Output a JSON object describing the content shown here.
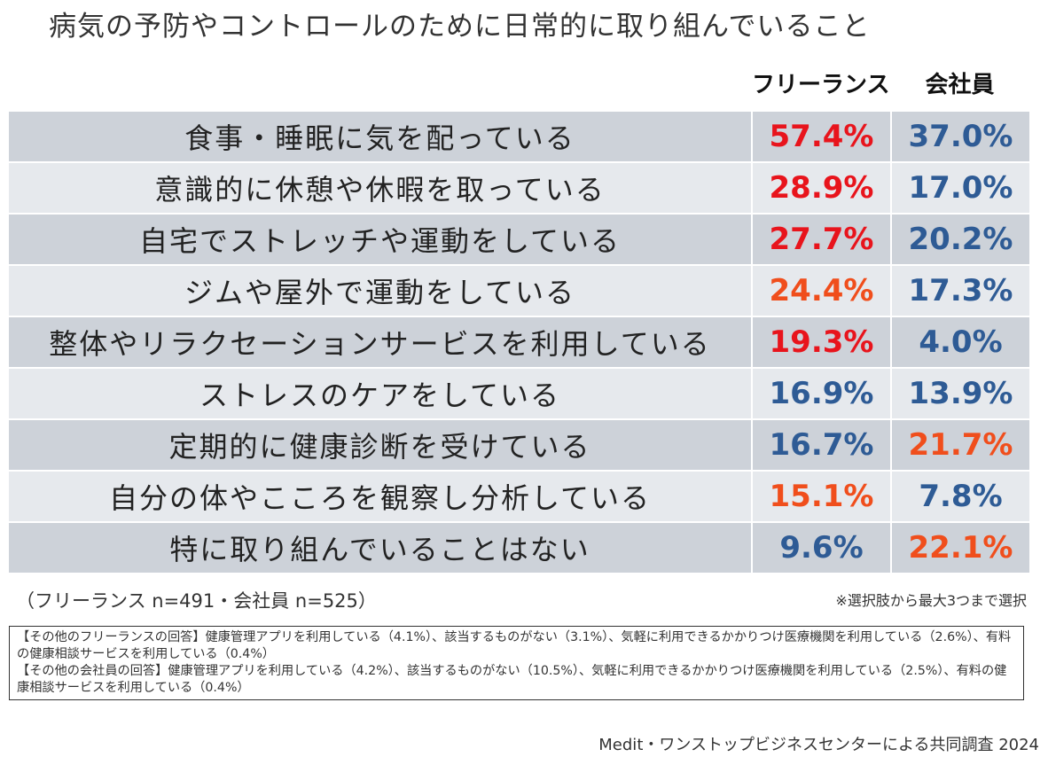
{
  "title": "病気の予防やコントロールのために日常的に取り組んでいること",
  "chart_data": {
    "type": "table",
    "title": "病気の予防やコントロールのために日常的に取り組んでいること",
    "columns": [
      "フリーランス",
      "会社員"
    ],
    "rows": [
      {
        "label": "食事・睡眠に気を配っている",
        "values": [
          "57.4%",
          "37.0%"
        ],
        "colors": [
          "#e8141c",
          "#2e5b95"
        ]
      },
      {
        "label": "意識的に休憩や休暇を取っている",
        "values": [
          "28.9%",
          "17.0%"
        ],
        "colors": [
          "#e8141c",
          "#2e5b95"
        ]
      },
      {
        "label": "自宅でストレッチや運動をしている",
        "values": [
          "27.7%",
          "20.2%"
        ],
        "colors": [
          "#e8141c",
          "#2e5b95"
        ]
      },
      {
        "label": "ジムや屋外で運動をしている",
        "values": [
          "24.4%",
          "17.3%"
        ],
        "colors": [
          "#f04e1c",
          "#2e5b95"
        ]
      },
      {
        "label": "整体やリラクセーションサービスを利用している",
        "values": [
          "19.3%",
          "4.0%"
        ],
        "colors": [
          "#e8141c",
          "#2e5b95"
        ]
      },
      {
        "label": "ストレスのケアをしている",
        "values": [
          "16.9%",
          "13.9%"
        ],
        "colors": [
          "#2e5b95",
          "#2e5b95"
        ]
      },
      {
        "label": "定期的に健康診断を受けている",
        "values": [
          "16.7%",
          "21.7%"
        ],
        "colors": [
          "#2e5b95",
          "#f04e1c"
        ]
      },
      {
        "label": "自分の体やこころを観察し分析している",
        "values": [
          "15.1%",
          "7.8%"
        ],
        "colors": [
          "#f04e1c",
          "#2e5b95"
        ]
      },
      {
        "label": "特に取り組んでいることはない",
        "values": [
          "9.6%",
          "22.1%"
        ],
        "colors": [
          "#2e5b95",
          "#f04e1c"
        ]
      }
    ]
  },
  "sample_size": "（フリーランス n=491・会社員 n=525）",
  "selection_note": "※選択肢から最大3つまで選択",
  "other_answers": {
    "freelance": "【その他のフリーランスの回答】健康管理アプリを利用している（4.1%）、該当するものがない（3.1%）、気軽に利用できるかかりつけ医療機関を利用している（2.6%）、有料の健康相談サービスを利用している（0.4%）",
    "employee": "【その他の会社員の回答】健康管理アプリを利用している（4.2%）、該当するものがない（10.5%）、気軽に利用できるかかりつけ医療機関を利用している（2.5%）、有料の健康相談サービスを利用している（0.4%）"
  },
  "footer": "Medit・ワンストップビジネスセンターによる共同調査 2024"
}
